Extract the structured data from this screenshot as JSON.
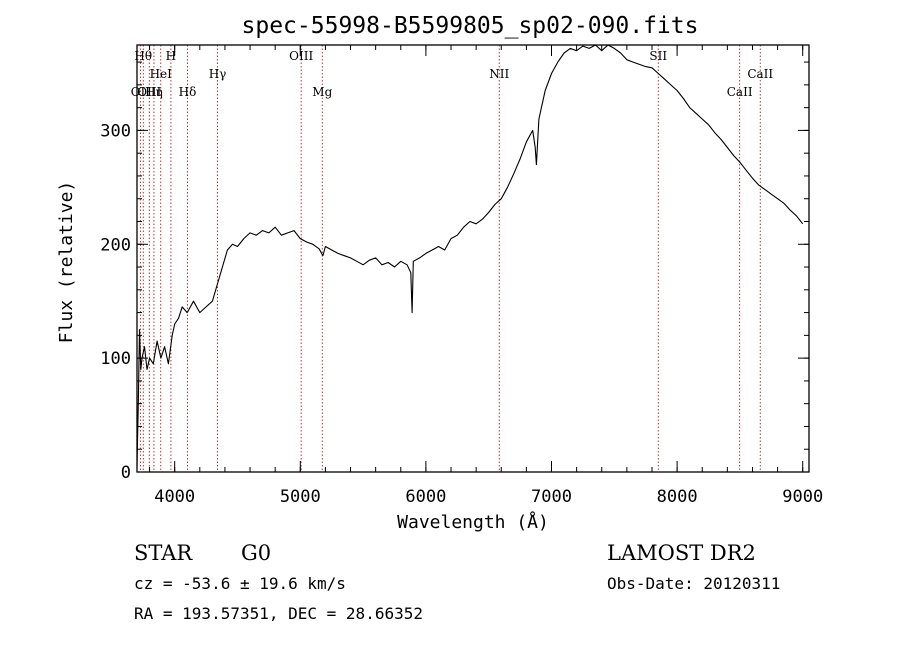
{
  "chart_data": {
    "type": "line",
    "title": "spec-55998-B5599805_sp02-090.fits",
    "xlabel": "Wavelength (Å)",
    "ylabel": "Flux (relative)",
    "xlim": [
      3700,
      9050
    ],
    "ylim": [
      0,
      375
    ],
    "xticks": [
      4000,
      5000,
      6000,
      7000,
      8000,
      9000
    ],
    "yticks": [
      0,
      100,
      200,
      300
    ],
    "grid": false,
    "series": [
      {
        "x": [
          3700,
          3710,
          3720,
          3730,
          3740,
          3760,
          3780,
          3800,
          3830,
          3860,
          3890,
          3920,
          3950,
          3980,
          4000,
          4030,
          4060,
          4100,
          4150,
          4200,
          4250,
          4300,
          4340,
          4380,
          4420,
          4460,
          4500,
          4550,
          4600,
          4650,
          4700,
          4750,
          4800,
          4850,
          4900,
          4950,
          5000,
          5050,
          5100,
          5150,
          5180,
          5200,
          5250,
          5300,
          5350,
          5400,
          5450,
          5500,
          5550,
          5600,
          5650,
          5700,
          5750,
          5800,
          5850,
          5880,
          5890,
          5900,
          5950,
          6000,
          6050,
          6100,
          6150,
          6200,
          6250,
          6300,
          6350,
          6400,
          6450,
          6500,
          6550,
          6600,
          6650,
          6700,
          6750,
          6800,
          6850,
          6870,
          6880,
          6900,
          6950,
          7000,
          7050,
          7100,
          7150,
          7200,
          7250,
          7300,
          7350,
          7400,
          7450,
          7500,
          7550,
          7600,
          7650,
          7700,
          7750,
          7800,
          7850,
          7900,
          7950,
          8000,
          8050,
          8100,
          8150,
          8200,
          8250,
          8300,
          8350,
          8400,
          8450,
          8500,
          8550,
          8600,
          8650,
          8700,
          8750,
          8800,
          8850,
          8900,
          8950,
          9000
        ],
        "y": [
          5,
          60,
          125,
          90,
          100,
          110,
          90,
          100,
          95,
          115,
          100,
          110,
          95,
          120,
          130,
          135,
          145,
          140,
          150,
          140,
          145,
          150,
          165,
          180,
          195,
          200,
          198,
          205,
          210,
          208,
          212,
          210,
          215,
          208,
          210,
          212,
          205,
          202,
          200,
          196,
          190,
          198,
          195,
          192,
          190,
          188,
          185,
          182,
          186,
          188,
          182,
          184,
          180,
          185,
          182,
          175,
          140,
          185,
          188,
          192,
          195,
          198,
          195,
          205,
          208,
          215,
          220,
          218,
          222,
          228,
          235,
          240,
          250,
          262,
          275,
          290,
          300,
          285,
          270,
          310,
          335,
          350,
          360,
          368,
          372,
          370,
          374,
          372,
          375,
          370,
          375,
          372,
          368,
          362,
          360,
          358,
          356,
          355,
          350,
          345,
          340,
          335,
          328,
          320,
          315,
          310,
          305,
          298,
          292,
          285,
          278,
          272,
          265,
          258,
          252,
          248,
          244,
          240,
          236,
          230,
          225,
          218
        ]
      }
    ],
    "lines": [
      {
        "x": 3727,
        "label": "OII",
        "row": 2
      },
      {
        "x": 3750,
        "label": "Hθ",
        "row": 0
      },
      {
        "x": 3798,
        "label": "OIII",
        "row": 2
      },
      {
        "x": 3835,
        "label": "Hη",
        "row": 2
      },
      {
        "x": 3889,
        "label": "HeI",
        "row": 1
      },
      {
        "x": 3970,
        "label": "H",
        "row": 0
      },
      {
        "x": 4102,
        "label": "Hδ",
        "row": 2
      },
      {
        "x": 4341,
        "label": "Hγ",
        "row": 1
      },
      {
        "x": 5007,
        "label": "OIII",
        "row": 0
      },
      {
        "x": 5175,
        "label": "Mg",
        "row": 2
      },
      {
        "x": 6584,
        "label": "NII",
        "row": 1
      },
      {
        "x": 7850,
        "label": "SII",
        "row": 0
      },
      {
        "x": 8498,
        "label": "CaII",
        "row": 2
      },
      {
        "x": 8662,
        "label": "CaII",
        "row": 1
      }
    ]
  },
  "info": {
    "class": "STAR",
    "subclass": "G0",
    "survey": "LAMOST DR2",
    "cz": "cz = -53.6 ± 19.6 km/s",
    "obsdate": "Obs-Date: 20120311",
    "radec": "RA = 193.57351, DEC =  28.66352"
  }
}
